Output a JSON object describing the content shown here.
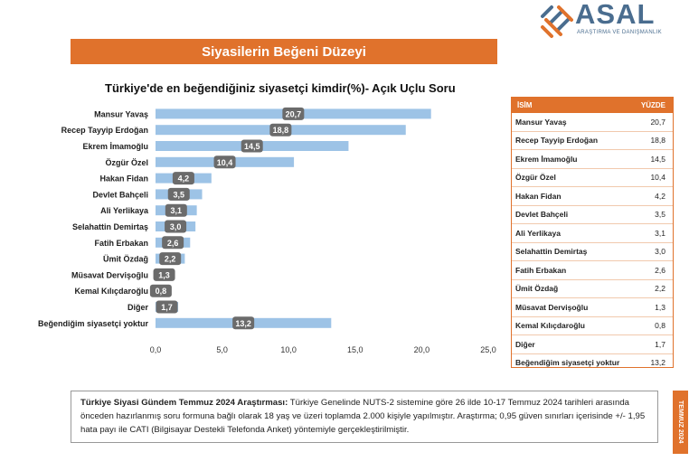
{
  "header": {
    "logo_text": "ASAL",
    "logo_sub": "ARAŞTIRMA VE DANIŞMANLIK",
    "banner": "Siyasilerin Beğeni Düzeyi"
  },
  "table": {
    "col_name": "İSİM",
    "col_value": "YÜZDE",
    "rows": [
      {
        "name": "Mansur Yavaş",
        "value": "20,7"
      },
      {
        "name": "Recep Tayyip Erdoğan",
        "value": "18,8"
      },
      {
        "name": "Ekrem İmamoğlu",
        "value": "14,5"
      },
      {
        "name": "Özgür Özel",
        "value": "10,4"
      },
      {
        "name": "Hakan Fidan",
        "value": "4,2"
      },
      {
        "name": "Devlet Bahçeli",
        "value": "3,5"
      },
      {
        "name": "Ali Yerlikaya",
        "value": "3,1"
      },
      {
        "name": "Selahattin Demirtaş",
        "value": "3,0"
      },
      {
        "name": "Fatih Erbakan",
        "value": "2,6"
      },
      {
        "name": "Ümit Özdağ",
        "value": "2,2"
      },
      {
        "name": "Müsavat Dervişoğlu",
        "value": "1,3"
      },
      {
        "name": "Kemal Kılıçdaroğlu",
        "value": "0,8"
      },
      {
        "name": "Diğer",
        "value": "1,7"
      },
      {
        "name": "Beğendiğim siyasetçi yoktur",
        "value": "13,2"
      }
    ]
  },
  "note": {
    "bold": "Türkiye Siyasi Gündem Temmuz 2024 Araştırması:",
    "text": " Türkiye Genelinde NUTS-2 sistemine göre 26 ilde 10-17 Temmuz 2024 tarihleri arasında önceden hazırlanmış soru formuna bağlı olarak 18 yaş ve üzeri toplamda 2.000 kişiyle yapılmıştır. Araştırma; 0,95 güven sınırları içerisinde +/- 1,95 hata payı ile CATI (Bilgisayar Destekli Telefonda Anket) yöntemiyle gerçekleştirilmiştir."
  },
  "side_tab": "TEMMUZ 2024",
  "chart_data": {
    "type": "bar",
    "orientation": "horizontal",
    "title": "Türkiye'de en beğendiğiniz siyasetçi kimdir(%)- Açık Uçlu Soru",
    "categories": [
      "Mansur Yavaş",
      "Recep Tayyip Erdoğan",
      "Ekrem İmamoğlu",
      "Özgür Özel",
      "Hakan Fidan",
      "Devlet Bahçeli",
      "Ali Yerlikaya",
      "Selahattin Demirtaş",
      "Fatih Erbakan",
      "Ümit Özdağ",
      "Müsavat Dervişoğlu",
      "Kemal Kılıçdaroğlu",
      "Diğer",
      "Beğendiğim siyasetçi yoktur"
    ],
    "values": [
      20.7,
      18.8,
      14.5,
      10.4,
      4.2,
      3.5,
      3.1,
      3.0,
      2.6,
      2.2,
      1.3,
      0.8,
      1.7,
      13.2
    ],
    "value_labels": [
      "20,7",
      "18,8",
      "14,5",
      "10,4",
      "4,2",
      "3,5",
      "3,1",
      "3,0",
      "2,6",
      "2,2",
      "1,3",
      "0,8",
      "1,7",
      "13,2"
    ],
    "xlim": [
      0,
      25
    ],
    "xticks": [
      "0,0",
      "5,0",
      "10,0",
      "15,0",
      "20,0",
      "25,0"
    ],
    "grid": false,
    "colors": {
      "bar": "#9dc3e6",
      "label_bg": "#6b6b6b",
      "accent": "#e0722c"
    }
  }
}
